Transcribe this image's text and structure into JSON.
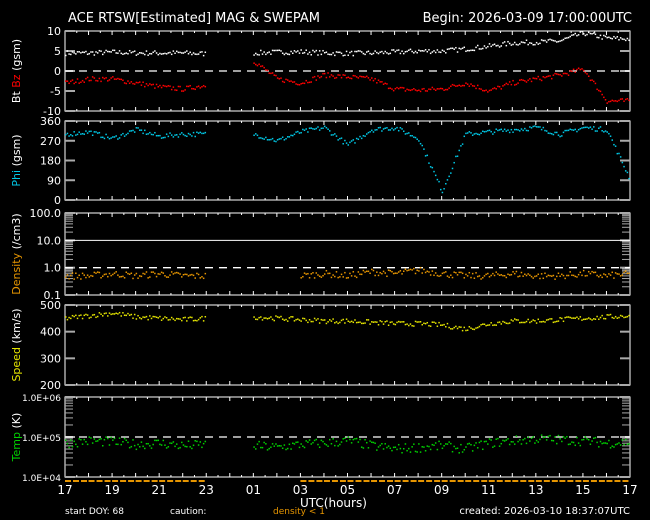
{
  "title": "ACE RTSW[Estimated] MAG & SWEPAM",
  "begin": "Begin: 2026-03-09 17:00:00UTC",
  "footer": {
    "start_doy": "start DOY:  68",
    "caution": "caution:",
    "density_note": "density < 1",
    "created": "created: 2026-03-10 18:37:07UTC"
  },
  "colors": {
    "bt": "#ffffff",
    "bz": "#ff0000",
    "phi": "#00c8e6",
    "density": "#e69500",
    "speed": "#e6e600",
    "temp": "#00d000",
    "axis": "#ffffff"
  },
  "chart_data": [
    {
      "type": "scatter",
      "ylabel_parts": [
        "Bt",
        "Bz",
        "(gsm)"
      ],
      "ylim": [
        -10,
        10
      ],
      "yticks": [
        "10",
        "5",
        "0",
        "-5",
        "-10"
      ],
      "reference_line": 0,
      "x": [
        "17",
        "18",
        "19",
        "20",
        "21",
        "22",
        "23",
        "00",
        "01",
        "02",
        "03",
        "04",
        "05",
        "06",
        "07",
        "08",
        "09",
        "10",
        "11",
        "12",
        "13",
        "14",
        "15",
        "16",
        "17"
      ],
      "series": [
        {
          "name": "Bt",
          "values": [
            4.5,
            4.5,
            4.7,
            4.5,
            4.5,
            4.5,
            4.3,
            null,
            4.5,
            4.7,
            4.8,
            4.5,
            4.4,
            4.5,
            4.7,
            5.0,
            5.0,
            5.5,
            6.2,
            7.0,
            7.2,
            7.5,
            9.5,
            8.2,
            8.0
          ]
        },
        {
          "name": "Bz",
          "values": [
            -3,
            -2,
            -2,
            -3,
            -4,
            -4.5,
            -3.5,
            null,
            2.5,
            -2,
            -3,
            -1,
            -1.5,
            -2,
            -4.5,
            -4.8,
            -4.5,
            -3,
            -5,
            -3,
            -2,
            -1,
            0.5,
            -7.5,
            -7.5
          ]
        }
      ]
    },
    {
      "type": "scatter",
      "ylabel_parts": [
        "Phi",
        "(gsm)"
      ],
      "ylim": [
        0,
        360
      ],
      "yticks": [
        "360",
        "270",
        "180",
        "90",
        "0"
      ],
      "series": [
        {
          "name": "Phi",
          "values": [
            300,
            310,
            280,
            320,
            290,
            300,
            300,
            null,
            300,
            270,
            310,
            330,
            250,
            320,
            330,
            280,
            40,
            300,
            310,
            320,
            330,
            300,
            330,
            320,
            90
          ]
        }
      ]
    },
    {
      "type": "scatter",
      "ylabel_parts": [
        "Density",
        "(/cm3)"
      ],
      "scale": "log",
      "ylim": [
        0.1,
        100
      ],
      "yticks": [
        "100.0",
        "10.0",
        "1.0",
        "0.1"
      ],
      "reference_line": 1,
      "series": [
        {
          "name": "Density",
          "values": [
            0.5,
            0.5,
            0.6,
            0.5,
            0.6,
            0.5,
            0.5,
            null,
            null,
            null,
            0.5,
            0.6,
            0.5,
            0.7,
            0.6,
            0.8,
            0.6,
            0.5,
            0.5,
            0.6,
            0.5,
            0.5,
            0.6,
            0.5,
            0.6
          ]
        }
      ]
    },
    {
      "type": "scatter",
      "ylabel_parts": [
        "Speed",
        "(km/s)"
      ],
      "ylim": [
        200,
        500
      ],
      "yticks": [
        "500",
        "400",
        "300",
        "200"
      ],
      "series": [
        {
          "name": "Speed",
          "values": [
            450,
            460,
            470,
            455,
            450,
            445,
            450,
            null,
            455,
            450,
            445,
            440,
            440,
            435,
            430,
            430,
            425,
            410,
            430,
            440,
            440,
            445,
            450,
            455,
            460
          ]
        }
      ]
    },
    {
      "type": "scatter",
      "ylabel_parts": [
        "Temp",
        "(K)"
      ],
      "scale": "log",
      "ylim": [
        10000,
        1000000
      ],
      "yticks": [
        "1.0E+06",
        "1.0E+05",
        "1.0E+04"
      ],
      "reference_line": 100000,
      "series": [
        {
          "name": "Temp",
          "values": [
            70000,
            80000,
            75000,
            65000,
            70000,
            60000,
            65000,
            null,
            60000,
            55000,
            65000,
            70000,
            80000,
            60000,
            50000,
            55000,
            60000,
            50000,
            70000,
            80000,
            90000,
            85000,
            80000,
            70000,
            75000
          ]
        }
      ]
    }
  ],
  "xaxis": {
    "label": "UTC(hours)",
    "ticks": [
      "17",
      "19",
      "21",
      "23",
      "01",
      "03",
      "05",
      "07",
      "09",
      "11",
      "13",
      "15",
      "17"
    ]
  }
}
